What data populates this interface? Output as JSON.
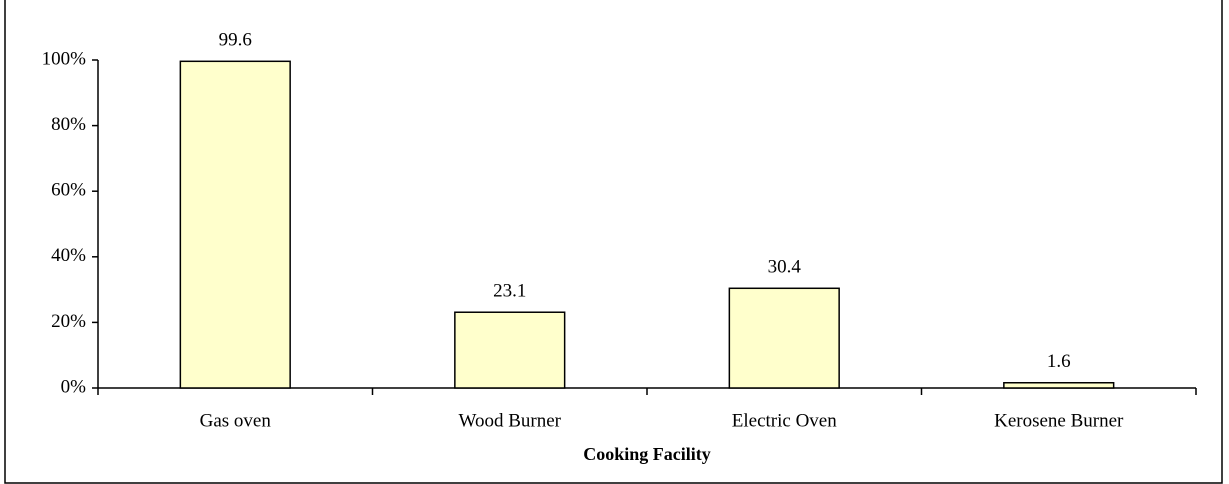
{
  "chart_data": {
    "type": "bar",
    "x_label": "Cooking  Facility",
    "categories": [
      "Gas oven",
      "Wood Burner",
      "Electric Oven",
      "Kerosene Burner"
    ],
    "values": [
      99.6,
      23.1,
      30.4,
      1.6
    ],
    "color": "#ffffcc",
    "ylim": [
      0,
      100
    ],
    "yticks": [
      {
        "value": 0,
        "label": "0%"
      },
      {
        "value": 20,
        "label": "20%"
      },
      {
        "value": 40,
        "label": "40%"
      },
      {
        "value": 60,
        "label": "60%"
      },
      {
        "value": 80,
        "label": "80%"
      },
      {
        "value": 100,
        "label": "100%"
      }
    ],
    "grid": false
  }
}
